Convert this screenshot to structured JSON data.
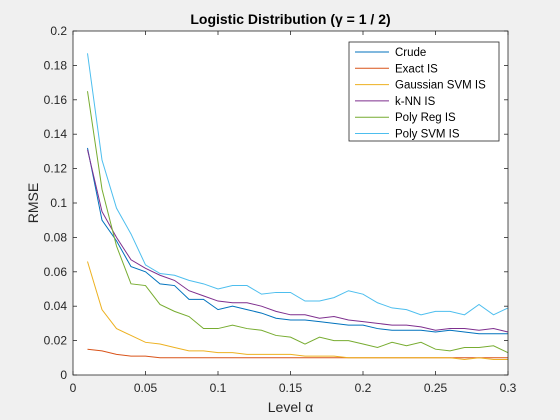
{
  "chart_data": {
    "type": "line",
    "title": "Logistic Distribution (γ = 1 / 2)",
    "xlabel": "Level α",
    "ylabel": "RMSE",
    "xlim": [
      0,
      0.3
    ],
    "ylim": [
      0,
      0.2
    ],
    "xticks": [
      "0",
      "0.05",
      "0.1",
      "0.15",
      "0.2",
      "0.25",
      "0.3"
    ],
    "yticks": [
      "0",
      "0.02",
      "0.04",
      "0.06",
      "0.08",
      "0.1",
      "0.12",
      "0.14",
      "0.16",
      "0.18",
      "0.2"
    ],
    "legend_position": "top-right",
    "grid": false,
    "x": [
      0.01,
      0.02,
      0.03,
      0.04,
      0.05,
      0.06,
      0.07,
      0.08,
      0.09,
      0.1,
      0.11,
      0.12,
      0.13,
      0.14,
      0.15,
      0.16,
      0.17,
      0.18,
      0.19,
      0.2,
      0.21,
      0.22,
      0.23,
      0.24,
      0.25,
      0.26,
      0.27,
      0.28,
      0.29,
      0.3
    ],
    "series": [
      {
        "name": "Crude",
        "color": "#0072bd",
        "values": [
          0.132,
          0.09,
          0.078,
          0.063,
          0.06,
          0.053,
          0.052,
          0.044,
          0.044,
          0.038,
          0.04,
          0.038,
          0.036,
          0.033,
          0.032,
          0.032,
          0.031,
          0.03,
          0.029,
          0.029,
          0.027,
          0.026,
          0.026,
          0.026,
          0.025,
          0.026,
          0.025,
          0.024,
          0.024,
          0.024
        ]
      },
      {
        "name": "Exact IS",
        "color": "#d95319",
        "values": [
          0.015,
          0.014,
          0.012,
          0.011,
          0.011,
          0.01,
          0.01,
          0.01,
          0.01,
          0.01,
          0.01,
          0.01,
          0.01,
          0.01,
          0.01,
          0.01,
          0.01,
          0.01,
          0.01,
          0.01,
          0.01,
          0.01,
          0.01,
          0.01,
          0.01,
          0.01,
          0.01,
          0.01,
          0.01,
          0.01
        ]
      },
      {
        "name": "Gaussian SVM IS",
        "color": "#edb120",
        "values": [
          0.066,
          0.038,
          0.027,
          0.023,
          0.019,
          0.018,
          0.016,
          0.014,
          0.014,
          0.013,
          0.013,
          0.012,
          0.012,
          0.012,
          0.012,
          0.011,
          0.011,
          0.011,
          0.01,
          0.01,
          0.01,
          0.01,
          0.01,
          0.01,
          0.01,
          0.01,
          0.009,
          0.01,
          0.009,
          0.009
        ]
      },
      {
        "name": "k-NN IS",
        "color": "#7e2f8e",
        "values": [
          0.131,
          0.095,
          0.08,
          0.067,
          0.062,
          0.058,
          0.055,
          0.049,
          0.046,
          0.043,
          0.042,
          0.042,
          0.04,
          0.037,
          0.035,
          0.035,
          0.033,
          0.034,
          0.032,
          0.031,
          0.03,
          0.029,
          0.029,
          0.028,
          0.026,
          0.027,
          0.027,
          0.026,
          0.027,
          0.025
        ]
      },
      {
        "name": "Poly Reg IS",
        "color": "#77ac30",
        "values": [
          0.165,
          0.108,
          0.075,
          0.053,
          0.052,
          0.041,
          0.037,
          0.034,
          0.027,
          0.027,
          0.029,
          0.027,
          0.026,
          0.023,
          0.022,
          0.018,
          0.022,
          0.02,
          0.02,
          0.018,
          0.016,
          0.019,
          0.017,
          0.019,
          0.015,
          0.014,
          0.016,
          0.016,
          0.017,
          0.013
        ]
      },
      {
        "name": "Poly SVM IS",
        "color": "#4dbeee",
        "values": [
          0.187,
          0.125,
          0.097,
          0.082,
          0.064,
          0.059,
          0.058,
          0.055,
          0.053,
          0.05,
          0.052,
          0.052,
          0.047,
          0.048,
          0.048,
          0.043,
          0.043,
          0.045,
          0.049,
          0.047,
          0.042,
          0.039,
          0.038,
          0.035,
          0.037,
          0.037,
          0.035,
          0.041,
          0.035,
          0.039
        ]
      }
    ]
  }
}
